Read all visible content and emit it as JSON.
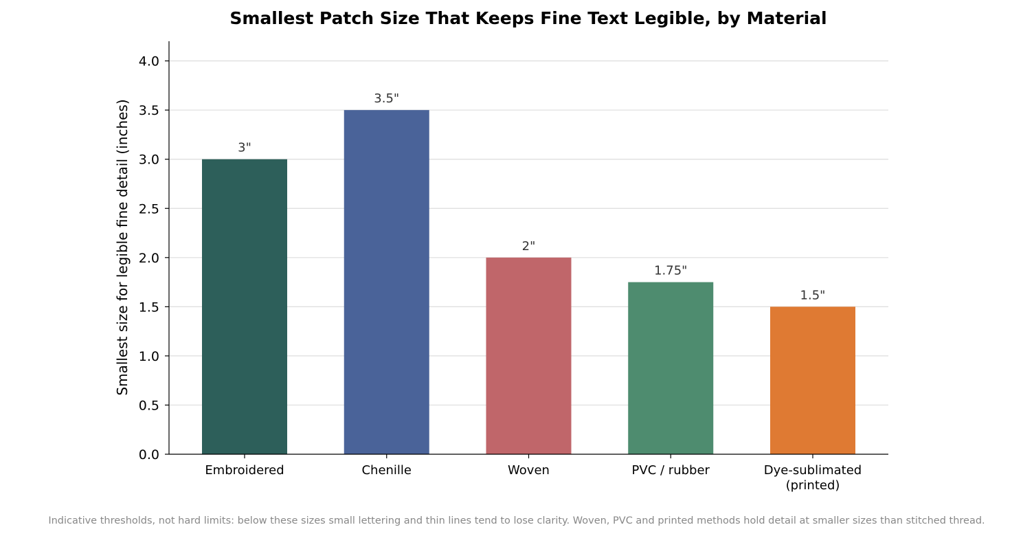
{
  "chart_data": {
    "type": "bar",
    "title": "Smallest Patch Size That Keeps Fine Text Legible, by Material",
    "ylabel": "Smallest size for legible fine detail (inches)",
    "xlabel": "",
    "categories": [
      [
        "Embroidered"
      ],
      [
        "Chenille"
      ],
      [
        "Woven"
      ],
      [
        "PVC / rubber"
      ],
      [
        "Dye-sublimated",
        "(printed)"
      ]
    ],
    "values": [
      3.0,
      3.5,
      2.0,
      1.75,
      1.5
    ],
    "value_labels": [
      "3\"",
      "3.5\"",
      "2\"",
      "1.75\"",
      "1.5\""
    ],
    "colors": [
      "#2d5f5a",
      "#4a6399",
      "#c0666a",
      "#4e8c6f",
      "#df7a33"
    ],
    "ylim": [
      0,
      4.2
    ],
    "yticks": [
      0.0,
      0.5,
      1.0,
      1.5,
      2.0,
      2.5,
      3.0,
      3.5,
      4.0
    ],
    "ytick_labels": [
      "0.0",
      "0.5",
      "1.0",
      "1.5",
      "2.0",
      "2.5",
      "3.0",
      "3.5",
      "4.0"
    ],
    "grid": "horizontal",
    "legend": "none",
    "footnote": "Indicative thresholds, not hard limits: below these sizes small lettering and thin lines tend to lose clarity. Woven, PVC and printed methods hold detail at smaller sizes than stitched thread."
  }
}
